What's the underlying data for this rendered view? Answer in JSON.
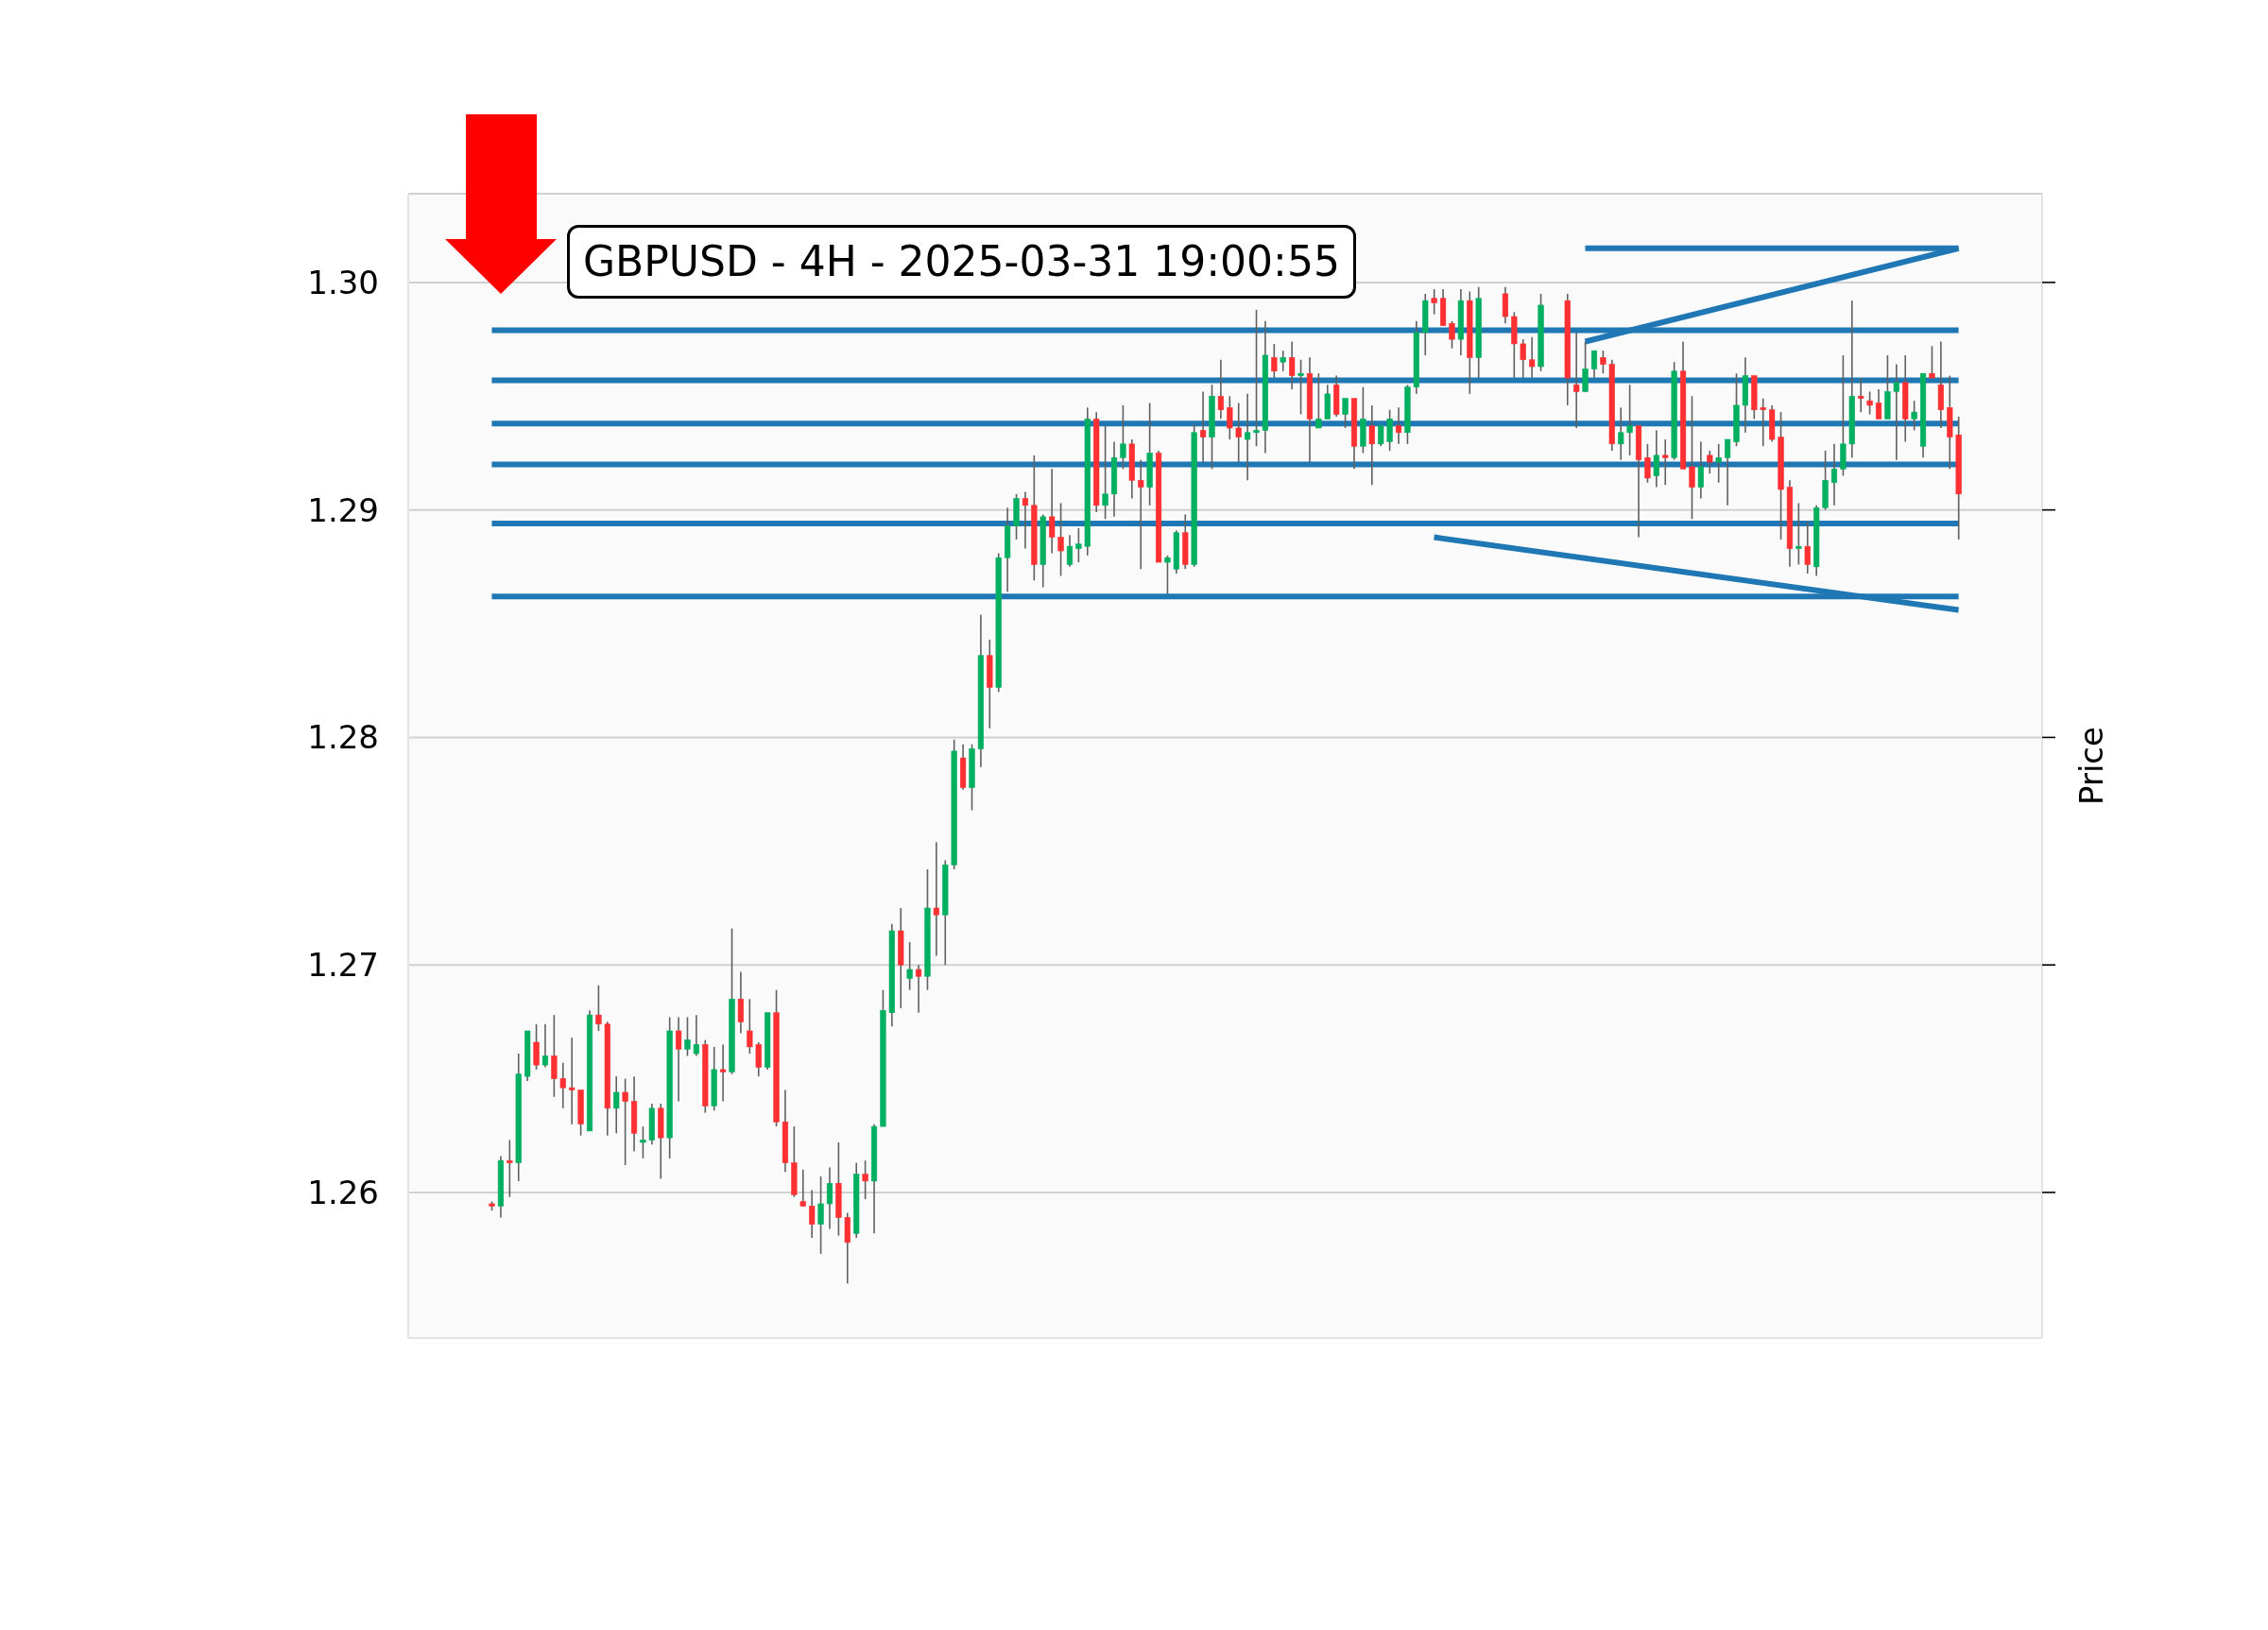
{
  "chart_data": {
    "type": "candlestick",
    "title": "GBPUSD - 4H - 2025-03-31 19:00:55",
    "ylabel": "Price",
    "categories": [
      null,
      null,
      null,
      null,
      null,
      null,
      null,
      null,
      null,
      null,
      null,
      null,
      null,
      null,
      null,
      null,
      null,
      null,
      null,
      null,
      null,
      null,
      null,
      null,
      null,
      null,
      null,
      null,
      null,
      null,
      null,
      null,
      null,
      null,
      null,
      null,
      null,
      null,
      null,
      null,
      null,
      null,
      null,
      null,
      null,
      null,
      null,
      null,
      null,
      null,
      null,
      null,
      null,
      null,
      null,
      null,
      null,
      null,
      null,
      null,
      null,
      null,
      null,
      null,
      null,
      null,
      null,
      null,
      null,
      null,
      null,
      null,
      null,
      null,
      null,
      null,
      null,
      null,
      null,
      null,
      null,
      null,
      null,
      null,
      null,
      null,
      null,
      null,
      null,
      null,
      null,
      null,
      null,
      null,
      null,
      null,
      null,
      null,
      null,
      null,
      null,
      null,
      null,
      null,
      null,
      null,
      null,
      null,
      null,
      null,
      null,
      null,
      null,
      null,
      null,
      null,
      null,
      null,
      null,
      null,
      null,
      null,
      null,
      null,
      null,
      null,
      null,
      null,
      null,
      null,
      null,
      null,
      null,
      null,
      null,
      null,
      null,
      null,
      null,
      null,
      null,
      null,
      null,
      null,
      null,
      null,
      null,
      null,
      null,
      null,
      null,
      null,
      null,
      null,
      null,
      null,
      null,
      null,
      null,
      null,
      null,
      null,
      null,
      null,
      null,
      null
    ],
    "ohlc": [
      [
        1.2595,
        1.2596,
        1.2592,
        1.2594
      ],
      [
        1.2594,
        1.2616,
        1.2589,
        1.2614
      ],
      [
        1.2614,
        1.2623,
        1.2598,
        1.2613
      ],
      [
        1.2613,
        1.2661,
        1.2605,
        1.2652
      ],
      [
        1.2651,
        1.2671,
        1.2649,
        1.2671
      ],
      [
        1.2666,
        1.2674,
        1.2654,
        1.2656
      ],
      [
        1.2656,
        1.2674,
        1.2655,
        1.266
      ],
      [
        1.266,
        1.2678,
        1.2642,
        1.265
      ],
      [
        1.265,
        1.2657,
        1.2637,
        1.2646
      ],
      [
        1.2646,
        1.2668,
        1.263,
        1.2645
      ],
      [
        1.2645,
        1.2645,
        1.2625,
        1.263
      ],
      [
        1.2627,
        1.268,
        1.2627,
        1.2678
      ],
      [
        1.2678,
        1.2691,
        1.2671,
        1.2674
      ],
      [
        1.2674,
        1.2675,
        1.2625,
        1.2637
      ],
      [
        1.2637,
        1.2651,
        1.2626,
        1.2644
      ],
      [
        1.2644,
        1.265,
        1.2612,
        1.264
      ],
      [
        1.264,
        1.2651,
        1.2618,
        1.2626
      ],
      [
        1.2622,
        1.2629,
        1.2615,
        1.2623
      ],
      [
        1.2623,
        1.2639,
        1.2621,
        1.2637
      ],
      [
        1.2637,
        1.2639,
        1.2606,
        1.2624
      ],
      [
        1.2624,
        1.2677,
        1.2615,
        1.2671
      ],
      [
        1.2671,
        1.2677,
        1.264,
        1.2663
      ],
      [
        1.2663,
        1.2677,
        1.266,
        1.2667
      ],
      [
        1.2661,
        1.2678,
        1.266,
        1.2665
      ],
      [
        1.2665,
        1.2667,
        1.2635,
        1.2638
      ],
      [
        1.2638,
        1.2664,
        1.2636,
        1.2654
      ],
      [
        1.2654,
        1.2665,
        1.264,
        1.2653
      ],
      [
        1.2653,
        1.2716,
        1.2652,
        1.2685
      ],
      [
        1.2685,
        1.2697,
        1.267,
        1.2675
      ],
      [
        1.2671,
        1.2685,
        1.2661,
        1.2664
      ],
      [
        1.2665,
        1.2666,
        1.2651,
        1.2655
      ],
      [
        1.2655,
        1.2679,
        1.2654,
        1.2679
      ],
      [
        1.2679,
        1.2689,
        1.2629,
        1.2631
      ],
      [
        1.2631,
        1.2645,
        1.2609,
        1.2613
      ],
      [
        1.2613,
        1.2629,
        1.2598,
        1.2599
      ],
      [
        1.2596,
        1.261,
        1.2594,
        1.2594
      ],
      [
        1.2594,
        1.2601,
        1.258,
        1.2586
      ],
      [
        1.2586,
        1.2607,
        1.2573,
        1.2595
      ],
      [
        1.2595,
        1.2611,
        1.2584,
        1.2604
      ],
      [
        1.2604,
        1.2622,
        1.2581,
        1.2589
      ],
      [
        1.2589,
        1.2591,
        1.256,
        1.2578
      ],
      [
        1.2582,
        1.2613,
        1.258,
        1.2608
      ],
      [
        1.2608,
        1.2614,
        1.2597,
        1.2605
      ],
      [
        1.2605,
        1.263,
        1.2582,
        1.2629
      ],
      [
        1.2629,
        1.2689,
        1.2629,
        1.268
      ],
      [
        1.2679,
        1.2718,
        1.2673,
        1.2715
      ],
      [
        1.2715,
        1.2725,
        1.2681,
        1.27
      ],
      [
        1.2694,
        1.271,
        1.2689,
        1.2698
      ],
      [
        1.2698,
        1.27,
        1.2679,
        1.2695
      ],
      [
        1.2695,
        1.2742,
        1.2689,
        1.2725
      ],
      [
        1.2725,
        1.2754,
        1.2704,
        1.2722
      ],
      [
        1.2722,
        1.2746,
        1.27,
        1.2744
      ],
      [
        1.2744,
        1.2799,
        1.2742,
        1.2794
      ],
      [
        1.2791,
        1.2797,
        1.2777,
        1.2778
      ],
      [
        1.2778,
        1.2797,
        1.2768,
        1.2795
      ],
      [
        1.2795,
        1.2854,
        1.2787,
        1.2836
      ],
      [
        1.2836,
        1.2843,
        1.2804,
        1.2822
      ],
      [
        1.2822,
        1.2881,
        1.282,
        1.2879
      ],
      [
        1.2879,
        1.2901,
        1.2864,
        1.2893
      ],
      [
        1.2893,
        1.2907,
        1.2887,
        1.2905
      ],
      [
        1.2905,
        1.2908,
        1.2883,
        1.2902
      ],
      [
        1.2902,
        1.2924,
        1.2869,
        1.2876
      ],
      [
        1.2876,
        1.2898,
        1.2866,
        1.2897
      ],
      [
        1.2897,
        1.2918,
        1.2881,
        1.2888
      ],
      [
        1.2888,
        1.2903,
        1.2871,
        1.2882
      ],
      [
        1.2876,
        1.2889,
        1.2875,
        1.2884
      ],
      [
        1.2883,
        1.2892,
        1.2877,
        1.2885
      ],
      [
        1.2884,
        1.2945,
        1.288,
        1.294
      ],
      [
        1.294,
        1.2943,
        1.2899,
        1.2902
      ],
      [
        1.2902,
        1.2937,
        1.2896,
        1.2907
      ],
      [
        1.2907,
        1.293,
        1.2897,
        1.2923
      ],
      [
        1.2923,
        1.2946,
        1.2918,
        1.2929
      ],
      [
        1.2929,
        1.2931,
        1.2905,
        1.2913
      ],
      [
        1.2913,
        1.2922,
        1.2874,
        1.291
      ],
      [
        1.291,
        1.2947,
        1.2902,
        1.2925
      ],
      [
        1.2925,
        1.2926,
        1.2877,
        1.2877
      ],
      [
        1.2877,
        1.288,
        1.2863,
        1.2879
      ],
      [
        1.2874,
        1.2891,
        1.2872,
        1.289
      ],
      [
        1.289,
        1.2898,
        1.2874,
        1.2876
      ],
      [
        1.2876,
        1.2938,
        1.2875,
        1.2934
      ],
      [
        1.2935,
        1.2952,
        1.2921,
        1.2932
      ],
      [
        1.2932,
        1.2955,
        1.2918,
        1.295
      ],
      [
        1.295,
        1.2966,
        1.294,
        1.2944
      ],
      [
        1.2945,
        1.295,
        1.2931,
        1.2936
      ],
      [
        1.2936,
        1.2947,
        1.2921,
        1.2932
      ],
      [
        1.2931,
        1.2951,
        1.2913,
        1.2934
      ],
      [
        1.2934,
        1.2988,
        1.2928,
        1.2935
      ],
      [
        1.2935,
        1.2983,
        1.2925,
        1.2968
      ],
      [
        1.2967,
        1.2973,
        1.2958,
        1.2961
      ],
      [
        1.2965,
        1.297,
        1.2961,
        1.2967
      ],
      [
        1.2967,
        1.2974,
        1.2953,
        1.2959
      ],
      [
        1.2959,
        1.2966,
        1.2942,
        1.296
      ],
      [
        1.296,
        1.2967,
        1.2921,
        1.294
      ],
      [
        1.2936,
        1.296,
        1.2936,
        1.294
      ],
      [
        1.294,
        1.2955,
        1.294,
        1.2951
      ],
      [
        1.2955,
        1.2959,
        1.2941,
        1.2942
      ],
      [
        1.2942,
        1.2949,
        1.2936,
        1.2949
      ],
      [
        1.2949,
        1.2949,
        1.2918,
        1.2928
      ],
      [
        1.2928,
        1.2954,
        1.2925,
        1.294
      ],
      [
        1.2937,
        1.2946,
        1.2911,
        1.2929
      ],
      [
        1.2929,
        1.2937,
        1.2928,
        1.2937
      ],
      [
        1.293,
        1.2944,
        1.2926,
        1.294
      ],
      [
        1.2937,
        1.2945,
        1.2929,
        1.2934
      ],
      [
        1.2934,
        1.2955,
        1.2929,
        1.2954
      ],
      [
        1.2954,
        1.2983,
        1.2951,
        1.2978
      ],
      [
        1.2978,
        1.2995,
        1.2968,
        1.2992
      ],
      [
        1.2993,
        1.2997,
        1.2986,
        1.2991
      ],
      [
        1.2993,
        1.2997,
        1.2981,
        1.2981
      ],
      [
        1.2982,
        1.2983,
        1.2971,
        1.2975
      ],
      [
        1.2975,
        1.2997,
        1.2968,
        1.2992
      ],
      [
        1.2992,
        1.2996,
        1.2951,
        1.2967
      ],
      [
        1.2967,
        1.2998,
        1.2958,
        1.2993
      ],
      null,
      null,
      [
        1.2995,
        1.2998,
        1.2982,
        1.2985
      ],
      [
        1.2985,
        1.2987,
        1.2958,
        1.2973
      ],
      [
        1.2973,
        1.2975,
        1.2958,
        1.2966
      ],
      [
        1.2966,
        1.2976,
        1.2958,
        1.2963
      ],
      [
        1.2963,
        1.2995,
        1.2961,
        1.299
      ],
      null,
      null,
      [
        1.2992,
        1.2995,
        1.2946,
        1.2958
      ],
      [
        1.2955,
        1.2978,
        1.2936,
        1.2952
      ],
      [
        1.2952,
        1.2974,
        1.2952,
        1.2962
      ],
      [
        1.2962,
        1.297,
        1.2958,
        1.297
      ],
      [
        1.2967,
        1.297,
        1.296,
        1.2964
      ],
      [
        1.2964,
        1.2966,
        1.2926,
        1.2929
      ],
      [
        1.2929,
        1.2945,
        1.2922,
        1.2934
      ],
      [
        1.2934,
        1.2955,
        1.2924,
        1.2937
      ],
      [
        1.2937,
        1.2937,
        1.2888,
        1.2922
      ],
      [
        1.2923,
        1.2929,
        1.2912,
        1.2914
      ],
      [
        1.2915,
        1.2935,
        1.291,
        1.2924
      ],
      [
        1.2924,
        1.2931,
        1.2911,
        1.2923
      ],
      [
        1.2923,
        1.2965,
        1.2922,
        1.2961
      ],
      [
        1.2961,
        1.2974,
        1.2918,
        1.2918
      ],
      [
        1.2919,
        1.295,
        1.2896,
        1.291
      ],
      [
        1.291,
        1.293,
        1.2905,
        1.2919
      ],
      [
        1.2924,
        1.2926,
        1.2916,
        1.2921
      ],
      [
        1.2921,
        1.2929,
        1.2912,
        1.2923
      ],
      [
        1.2923,
        1.2931,
        1.2902,
        1.2931
      ],
      [
        1.293,
        1.296,
        1.2928,
        1.2946
      ],
      [
        1.2946,
        1.2967,
        1.2934,
        1.2959
      ],
      [
        1.2959,
        1.2959,
        1.294,
        1.2944
      ],
      [
        1.2945,
        1.2949,
        1.2928,
        1.2944
      ],
      [
        1.2944,
        1.2946,
        1.293,
        1.2931
      ],
      [
        1.2932,
        1.2943,
        1.2887,
        1.2909
      ],
      [
        1.291,
        1.2913,
        1.2875,
        1.2883
      ],
      [
        1.2883,
        1.2903,
        1.2876,
        1.2884
      ],
      [
        1.2884,
        1.2895,
        1.2872,
        1.2876
      ],
      [
        1.2875,
        1.2902,
        1.2871,
        1.2901
      ],
      [
        1.2901,
        1.2926,
        1.29,
        1.2913
      ],
      [
        1.2912,
        1.2929,
        1.2902,
        1.2918
      ],
      [
        1.2918,
        1.2968,
        1.2915,
        1.2929
      ],
      [
        1.2929,
        1.2992,
        1.2923,
        1.295
      ],
      [
        1.295,
        1.2958,
        1.2943,
        1.2949
      ],
      [
        1.2948,
        1.2952,
        1.2942,
        1.2946
      ],
      [
        1.2947,
        1.2953,
        1.294,
        1.294
      ],
      [
        1.294,
        1.2968,
        1.294,
        1.2952
      ],
      [
        1.2952,
        1.2964,
        1.2922,
        1.2956
      ],
      [
        1.2956,
        1.2968,
        1.293,
        1.294
      ],
      [
        1.294,
        1.2948,
        1.2935,
        1.2943
      ],
      [
        1.2928,
        1.296,
        1.2923,
        1.296
      ],
      [
        1.296,
        1.2972,
        1.2958,
        1.2958
      ],
      [
        1.2955,
        1.2974,
        1.2936,
        1.2944
      ],
      [
        1.2945,
        1.2959,
        1.2918,
        1.2932
      ],
      [
        1.2933,
        1.2941,
        1.2887,
        1.2907
      ]
    ],
    "colors": [
      "#fe3032",
      "#00b060",
      "#fe3032",
      "#00b060",
      "#00b060",
      "#fe3032",
      "#00b060",
      "#fe3032",
      "#fe3032",
      "#fe3032",
      "#fe3032",
      "#00b060",
      "#fe3032",
      "#fe3032",
      "#00b060",
      "#fe3032",
      "#fe3032",
      "#00b060",
      "#00b060",
      "#fe3032",
      "#00b060",
      "#fe3032",
      "#00b060",
      "#00b060",
      "#fe3032",
      "#00b060",
      "#fe3032",
      "#00b060",
      "#fe3032",
      "#fe3032",
      "#fe3032",
      "#00b060",
      "#fe3032",
      "#fe3032",
      "#fe3032",
      "#fe3032",
      "#fe3032",
      "#00b060",
      "#00b060",
      "#fe3032",
      "#fe3032",
      "#00b060",
      "#fe3032",
      "#00b060",
      "#00b060",
      "#00b060",
      "#fe3032",
      "#00b060",
      "#fe3032",
      "#00b060",
      "#fe3032",
      "#00b060",
      "#00b060",
      "#fe3032",
      "#00b060",
      "#00b060",
      "#fe3032",
      "#00b060",
      "#00b060",
      "#00b060",
      "#fe3032",
      "#fe3032",
      "#00b060",
      "#fe3032",
      "#fe3032",
      "#00b060",
      "#00b060",
      "#00b060",
      "#fe3032",
      "#00b060",
      "#00b060",
      "#00b060",
      "#fe3032",
      "#fe3032",
      "#00b060",
      "#fe3032",
      "#00b060",
      "#00b060",
      "#fe3032",
      "#00b060",
      "#fe3032",
      "#00b060",
      "#fe3032",
      "#fe3032",
      "#fe3032",
      "#00b060",
      "#00b060",
      "#00b060",
      "#fe3032",
      "#00b060",
      "#fe3032",
      "#00b060",
      "#fe3032",
      "#00b060",
      "#00b060",
      "#fe3032",
      "#00b060",
      "#fe3032",
      "#00b060",
      "#fe3032",
      "#00b060",
      "#00b060",
      "#fe3032",
      "#00b060",
      "#00b060",
      "#00b060",
      "#fe3032",
      "#fe3032",
      "#fe3032",
      "#00b060",
      "#fe3032",
      "#00b060",
      null,
      null,
      "#fe3032",
      "#fe3032",
      "#fe3032",
      "#fe3032",
      "#00b060",
      null,
      null,
      "#fe3032",
      "#fe3032",
      "#00b060",
      "#00b060",
      "#fe3032",
      "#fe3032",
      "#00b060",
      "#00b060",
      "#fe3032",
      "#fe3032",
      "#00b060",
      "#fe3032",
      "#00b060",
      "#fe3032",
      "#fe3032",
      "#00b060",
      "#fe3032",
      "#00b060",
      "#00b060",
      "#00b060",
      "#00b060",
      "#fe3032",
      "#fe3032",
      "#fe3032",
      "#fe3032",
      "#fe3032",
      "#00b060",
      "#fe3032",
      "#00b060",
      "#00b060",
      "#00b060",
      "#00b060",
      "#00b060",
      "#fe3032",
      "#fe3032",
      "#fe3032",
      "#00b060",
      "#00b060",
      "#fe3032",
      "#00b060",
      "#00b060",
      "#fe3032",
      "#fe3032",
      "#fe3032",
      "#fe3032"
    ],
    "series": [
      {
        "type": "line",
        "color": "#1f77b4",
        "values": [
          null,
          null,
          null,
          null,
          null,
          null,
          null,
          null,
          null,
          null,
          null,
          null,
          null,
          null,
          null,
          null,
          null,
          null,
          null,
          null,
          null,
          null,
          null,
          null,
          null,
          null,
          null,
          null,
          null,
          null,
          null,
          null,
          null,
          null,
          null,
          null,
          null,
          null,
          null,
          null,
          null,
          null,
          null,
          null,
          null,
          null,
          null,
          null,
          null,
          null,
          null,
          null,
          null,
          null,
          null,
          null,
          null,
          null,
          null,
          null,
          null,
          null,
          null,
          null,
          null,
          null,
          null,
          null,
          null,
          null,
          null,
          null,
          null,
          null,
          null,
          null,
          null,
          null,
          null,
          null,
          null,
          null,
          null,
          null,
          null,
          null,
          null,
          null,
          null,
          null,
          null,
          null,
          null,
          null,
          null,
          null,
          null,
          null,
          null,
          null,
          null,
          null,
          null,
          null,
          null,
          null,
          null,
          null,
          null,
          null,
          null,
          null,
          null,
          null,
          null,
          null,
          null,
          null,
          null,
          null,
          null,
          null,
          null,
          1.2974,
          null,
          null,
          null,
          null,
          null,
          null,
          null,
          null,
          null,
          null,
          null,
          null,
          null,
          null,
          null,
          null,
          null,
          null,
          null,
          null,
          null,
          null,
          null,
          null,
          null,
          null,
          null,
          null,
          null,
          null,
          null,
          null,
          null,
          null,
          null,
          null,
          null,
          null,
          null,
          null,
          null,
          1.3015
        ]
      },
      {
        "type": "line",
        "color": "#1f77b4",
        "values": [
          null,
          null,
          null,
          null,
          null,
          null,
          null,
          null,
          null,
          null,
          null,
          null,
          null,
          null,
          null,
          null,
          null,
          null,
          null,
          null,
          null,
          null,
          null,
          null,
          null,
          null,
          null,
          null,
          null,
          null,
          null,
          null,
          null,
          null,
          null,
          null,
          null,
          null,
          null,
          null,
          null,
          null,
          null,
          null,
          null,
          null,
          null,
          null,
          null,
          null,
          null,
          null,
          null,
          null,
          null,
          null,
          null,
          null,
          null,
          null,
          null,
          null,
          null,
          null,
          null,
          null,
          null,
          null,
          null,
          null,
          null,
          null,
          null,
          null,
          null,
          null,
          null,
          null,
          null,
          null,
          null,
          null,
          null,
          null,
          null,
          null,
          null,
          null,
          null,
          null,
          null,
          null,
          null,
          null,
          null,
          null,
          null,
          null,
          null,
          null,
          null,
          null,
          null,
          null,
          null,
          null,
          null,
          null,
          null,
          null,
          null,
          null,
          null,
          null,
          null,
          null,
          null,
          null,
          null,
          null,
          null,
          null,
          null,
          1.3015,
          null,
          null,
          null,
          null,
          null,
          null,
          null,
          null,
          null,
          null,
          null,
          null,
          null,
          null,
          null,
          null,
          null,
          null,
          null,
          null,
          null,
          null,
          null,
          null,
          null,
          null,
          null,
          null,
          null,
          null,
          null,
          null,
          null,
          null,
          null,
          null,
          null,
          null,
          null,
          null,
          null,
          1.3015
        ]
      },
      {
        "type": "line",
        "color": "#1f77b4",
        "values": [
          null,
          null,
          null,
          null,
          null,
          null,
          null,
          null,
          null,
          null,
          null,
          null,
          null,
          null,
          null,
          null,
          null,
          null,
          null,
          null,
          null,
          null,
          null,
          null,
          null,
          null,
          null,
          null,
          null,
          null,
          null,
          null,
          null,
          null,
          null,
          null,
          null,
          null,
          null,
          null,
          null,
          null,
          null,
          null,
          null,
          null,
          null,
          null,
          null,
          null,
          null,
          null,
          null,
          null,
          null,
          null,
          null,
          null,
          null,
          null,
          null,
          null,
          null,
          null,
          null,
          null,
          null,
          null,
          null,
          null,
          null,
          null,
          null,
          null,
          null,
          null,
          null,
          null,
          null,
          null,
          null,
          null,
          null,
          null,
          null,
          null,
          null,
          null,
          null,
          null,
          null,
          null,
          null,
          null,
          null,
          null,
          null,
          null,
          null,
          null,
          null,
          null,
          null,
          null,
          null,
          null,
          1.2888,
          null,
          null,
          null,
          null,
          null,
          null,
          null,
          null,
          null,
          null,
          null,
          null,
          null,
          null,
          null,
          null,
          null,
          null,
          null,
          null,
          null,
          null,
          null,
          null,
          null,
          null,
          null,
          null,
          null,
          null,
          null,
          null,
          null,
          null,
          null,
          null,
          null,
          null,
          null,
          null,
          null,
          null,
          null,
          null,
          null,
          null,
          null,
          null,
          null,
          null,
          null,
          null,
          null,
          null,
          null,
          null,
          null,
          null,
          1.2856
        ]
      }
    ],
    "ref_lines": [
      {
        "axis": "y",
        "value": 1.2979,
        "color": "#1f77b4"
      },
      {
        "axis": "y",
        "value": 1.2957,
        "color": "#1f77b4"
      },
      {
        "axis": "y",
        "value": 1.2938,
        "color": "#1f77b4"
      },
      {
        "axis": "y",
        "value": 1.292,
        "color": "#1f77b4"
      },
      {
        "axis": "y",
        "value": 1.2894,
        "color": "#1f77b4"
      },
      {
        "axis": "y",
        "value": 1.2862,
        "color": "#1f77b4"
      }
    ],
    "ylim": [
      1.2536,
      1.3039
    ],
    "yticks": [
      1.26,
      1.27,
      1.28,
      1.29,
      {
        "value": 1.3,
        "label": "1.30"
      }
    ],
    "grid": "y",
    "tick_labels": "y"
  }
}
